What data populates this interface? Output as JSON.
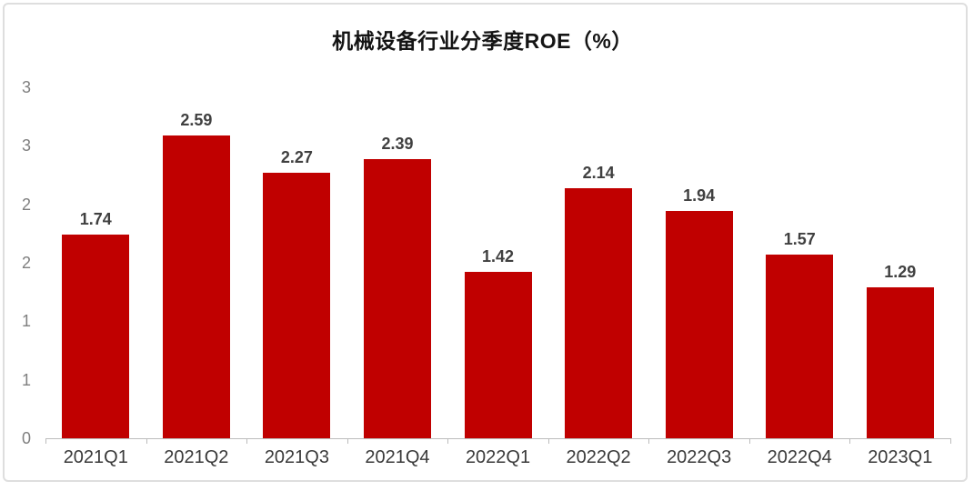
{
  "page": {
    "background_color": "#ffffff",
    "frame_border_color": "#dedede"
  },
  "chart_data": {
    "type": "bar",
    "title": "机械设备行业分季度ROE（%）",
    "categories": [
      "2021Q1",
      "2021Q2",
      "2021Q3",
      "2021Q4",
      "2022Q1",
      "2022Q2",
      "2022Q3",
      "2022Q4",
      "2023Q1"
    ],
    "values": [
      1.74,
      2.59,
      2.27,
      2.39,
      1.42,
      2.14,
      1.94,
      1.57,
      1.29
    ],
    "data_labels": [
      "1.74",
      "2.59",
      "2.27",
      "2.39",
      "1.42",
      "2.14",
      "1.94",
      "1.57",
      "1.29"
    ],
    "xlabel": "",
    "ylabel": "",
    "ylim": [
      0,
      3
    ],
    "y_ticks": [
      {
        "value": 0,
        "label": "0"
      },
      {
        "value": 0.5,
        "label": "1"
      },
      {
        "value": 1,
        "label": "1"
      },
      {
        "value": 1.5,
        "label": "2"
      },
      {
        "value": 2,
        "label": "2"
      },
      {
        "value": 2.5,
        "label": "3"
      },
      {
        "value": 3,
        "label": "3"
      }
    ],
    "grid": false,
    "legend": false,
    "bar_color": "#c00000",
    "data_label_color": "#404040",
    "axis_line_color": "#bcbcbc",
    "y_tick_label_color": "#7f7f7f",
    "x_tick_label_color": "#3a3a3a",
    "title_color": "#141414"
  }
}
